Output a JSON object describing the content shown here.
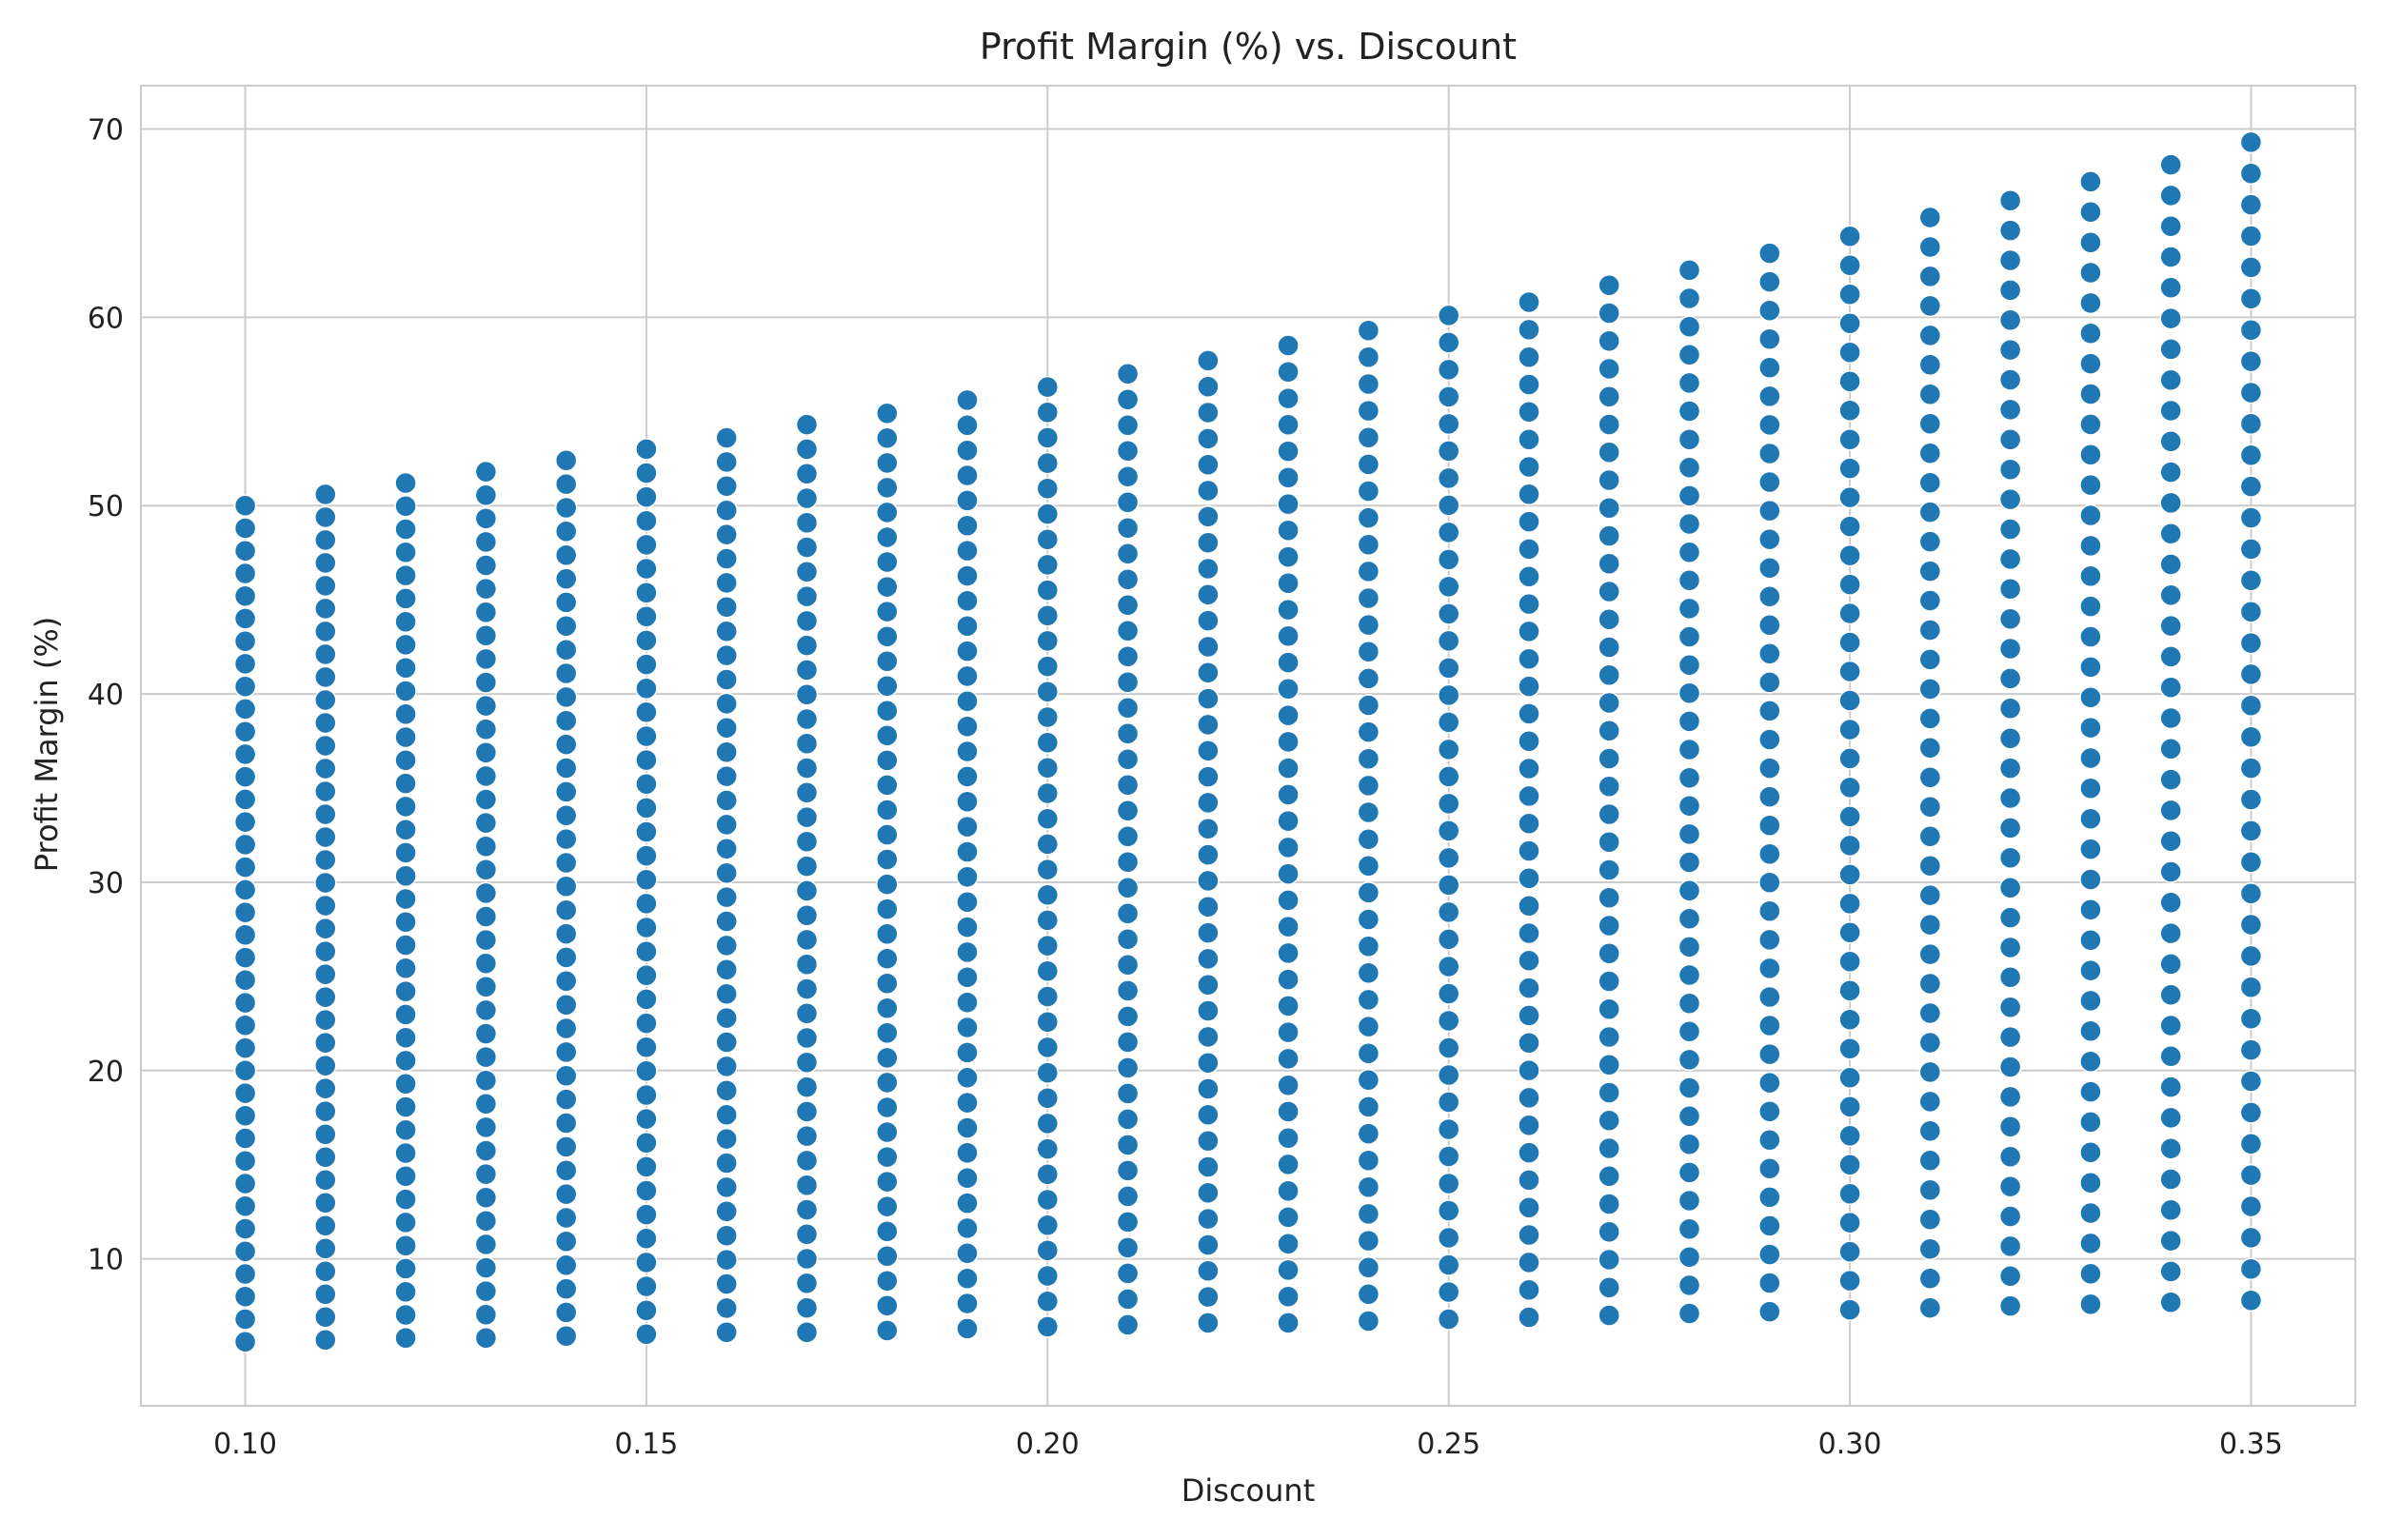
{
  "chart_data": {
    "type": "scatter",
    "title": "Profit Margin (%) vs. Discount",
    "xlabel": "Discount",
    "ylabel": "Profit Margin (%)",
    "xlim": [
      0.087,
      0.363
    ],
    "ylim": [
      2.2,
      72.3
    ],
    "xticks": [
      0.1,
      0.15,
      0.2,
      0.25,
      0.3,
      0.35
    ],
    "xtick_labels": [
      "0.10",
      "0.15",
      "0.20",
      "0.25",
      "0.30",
      "0.35"
    ],
    "yticks": [
      10,
      20,
      30,
      40,
      50,
      60,
      70
    ],
    "ytick_labels": [
      "10",
      "20",
      "30",
      "40",
      "50",
      "60",
      "70"
    ],
    "grid": true,
    "legend": false,
    "marker_color": "#1f77b4",
    "marker_edge_color": "#ffffff",
    "background_color": "#ffffff",
    "grid_color": "#cccccc",
    "series": [
      {
        "columns": [
          {
            "x": 0.1,
            "y_min": 5.6,
            "y_max": 50.0
          },
          {
            "x": 0.11,
            "y_min": 5.7,
            "y_max": 50.6
          },
          {
            "x": 0.12,
            "y_min": 5.8,
            "y_max": 51.2
          },
          {
            "x": 0.13,
            "y_min": 5.8,
            "y_max": 51.8
          },
          {
            "x": 0.14,
            "y_min": 5.9,
            "y_max": 52.4
          },
          {
            "x": 0.15,
            "y_min": 6.0,
            "y_max": 53.0
          },
          {
            "x": 0.16,
            "y_min": 6.1,
            "y_max": 53.6
          },
          {
            "x": 0.17,
            "y_min": 6.1,
            "y_max": 54.3
          },
          {
            "x": 0.18,
            "y_min": 6.2,
            "y_max": 54.9
          },
          {
            "x": 0.19,
            "y_min": 6.3,
            "y_max": 55.6
          },
          {
            "x": 0.2,
            "y_min": 6.4,
            "y_max": 56.3
          },
          {
            "x": 0.21,
            "y_min": 6.5,
            "y_max": 57.0
          },
          {
            "x": 0.22,
            "y_min": 6.6,
            "y_max": 57.7
          },
          {
            "x": 0.23,
            "y_min": 6.6,
            "y_max": 58.5
          },
          {
            "x": 0.24,
            "y_min": 6.7,
            "y_max": 59.3
          },
          {
            "x": 0.25,
            "y_min": 6.8,
            "y_max": 60.1
          },
          {
            "x": 0.26,
            "y_min": 6.9,
            "y_max": 60.8
          },
          {
            "x": 0.27,
            "y_min": 7.0,
            "y_max": 61.7
          },
          {
            "x": 0.28,
            "y_min": 7.1,
            "y_max": 62.5
          },
          {
            "x": 0.29,
            "y_min": 7.2,
            "y_max": 63.4
          },
          {
            "x": 0.3,
            "y_min": 7.3,
            "y_max": 64.3
          },
          {
            "x": 0.31,
            "y_min": 7.4,
            "y_max": 65.3
          },
          {
            "x": 0.32,
            "y_min": 7.5,
            "y_max": 66.2
          },
          {
            "x": 0.33,
            "y_min": 7.6,
            "y_max": 67.2
          },
          {
            "x": 0.34,
            "y_min": 7.7,
            "y_max": 68.1
          },
          {
            "x": 0.35,
            "y_min": 7.8,
            "y_max": 69.3
          }
        ],
        "points_per_column": 38
      }
    ]
  }
}
